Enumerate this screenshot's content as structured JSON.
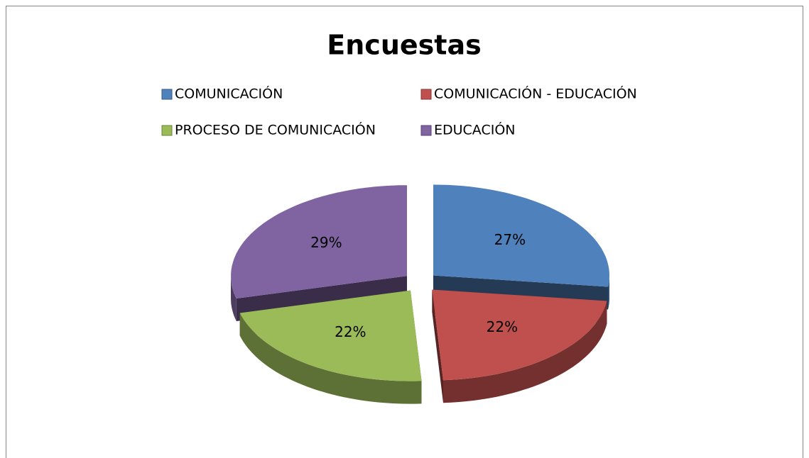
{
  "chart_data": {
    "type": "pie",
    "title": "Encuestas",
    "categories": [
      "COMUNICACIÓN",
      "COMUNICACIÓN - EDUCACIÓN",
      "PROCESO DE COMUNICACIÓN",
      "EDUCACIÓN"
    ],
    "values": [
      27,
      22,
      22,
      29
    ],
    "value_labels": [
      "27%",
      "22%",
      "22%",
      "29%"
    ],
    "colors": [
      "#4f81bd",
      "#c0504d",
      "#9bbb59",
      "#8064a2"
    ],
    "legend": "top"
  }
}
